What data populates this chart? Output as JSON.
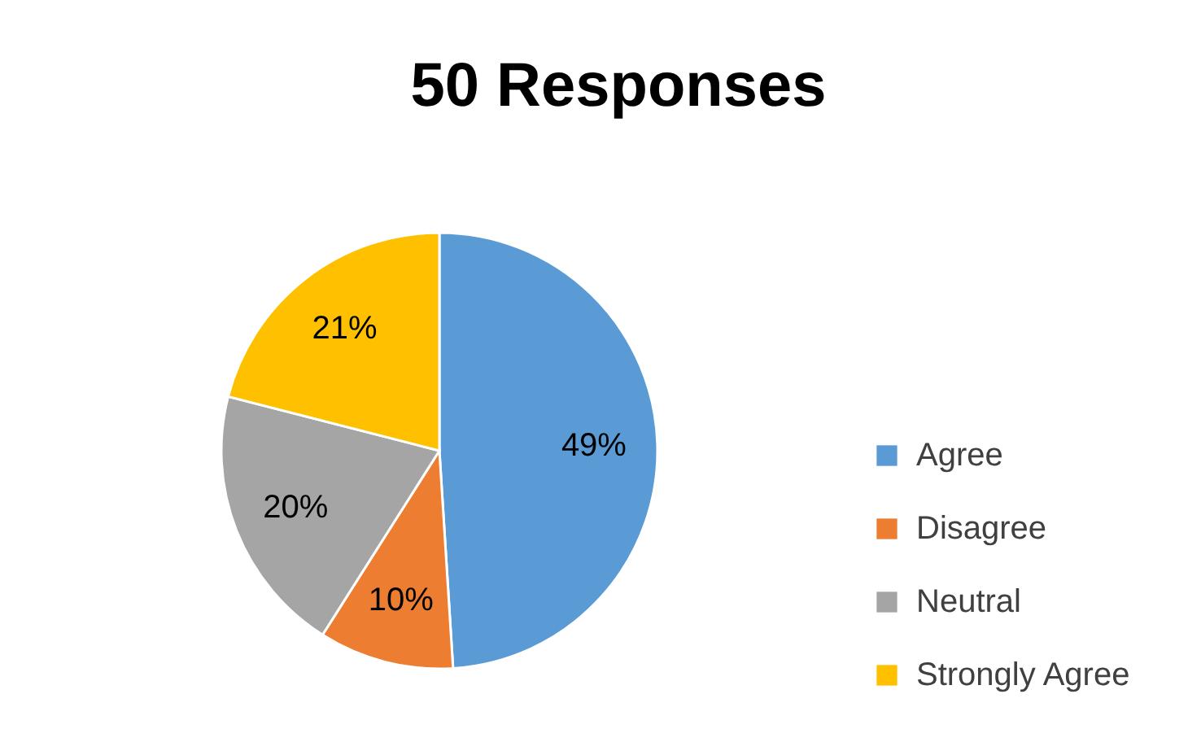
{
  "chart_data": {
    "type": "pie",
    "title": "50 Responses",
    "categories": [
      "Agree",
      "Disagree",
      "Neutral",
      "Strongly Agree"
    ],
    "values": [
      49,
      10,
      20,
      21
    ],
    "value_labels": [
      "49%",
      "10%",
      "20%",
      "21%"
    ],
    "colors": [
      "#5b9bd5",
      "#ed7d31",
      "#a5a5a5",
      "#ffc000"
    ],
    "legend": "right"
  }
}
